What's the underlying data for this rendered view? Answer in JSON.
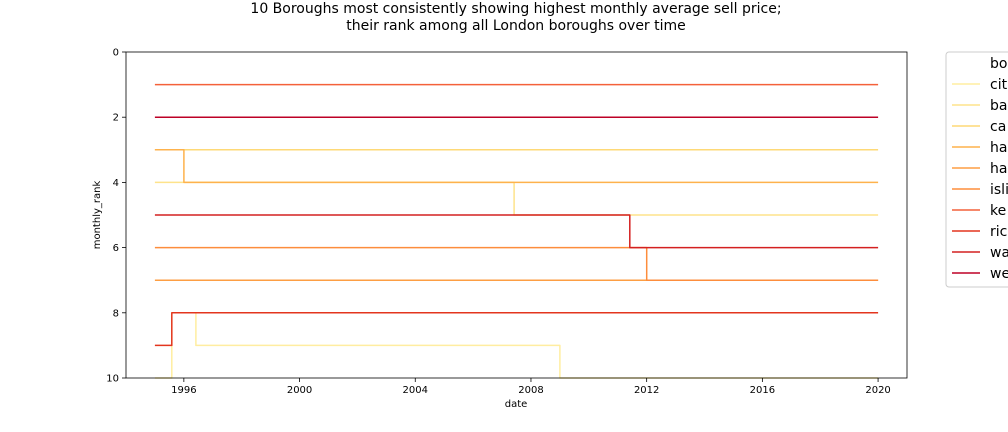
{
  "chart_data": {
    "type": "line",
    "title": "10 Boroughs most consistently showing highest monthly average sell price;",
    "subtitle": "their rank among all London boroughs over time",
    "xlabel": "date",
    "ylabel": "monthly_rank",
    "xlim": [
      "1994-01-01",
      "2021-01-01"
    ],
    "ylim": [
      10,
      0
    ],
    "y_inverted": true,
    "x_ticks": [
      "1996",
      "2000",
      "2004",
      "2008",
      "2012",
      "2016",
      "2020"
    ],
    "y_ticks": [
      "0",
      "2",
      "4",
      "6",
      "8",
      "10"
    ],
    "grid": false,
    "legend_placement": "outside-right",
    "legend_title": "bo",
    "series": [
      {
        "name": "cit",
        "color": "#ffeda0",
        "segments": [
          {
            "from": "1995-01",
            "to": "1995-08",
            "value": 10
          },
          {
            "from": "1995-08",
            "to": "1996-06",
            "value": 8
          },
          {
            "from": "1996-06",
            "to": "2009-01",
            "value": 9
          },
          {
            "from": "2009-01",
            "to": "2020-01",
            "value": 10
          }
        ]
      },
      {
        "name": "ba",
        "color": "#fee38b",
        "segments": [
          {
            "from": "1995-01",
            "to": "2007-06",
            "value": 4
          },
          {
            "from": "2007-06",
            "to": "2020-01",
            "value": 5
          }
        ]
      },
      {
        "name": "ca",
        "color": "#fed976",
        "segments": [
          {
            "from": "1995-01",
            "to": "2020-01",
            "value": 3
          }
        ]
      },
      {
        "name": "ha",
        "color": "#feb24c",
        "segments": [
          {
            "from": "1995-01",
            "to": "1996-01",
            "value": 3
          },
          {
            "from": "1996-01",
            "to": "2020-01",
            "value": 4
          }
        ]
      },
      {
        "name": "ha",
        "color": "#fd9e43",
        "segments": [
          {
            "from": "1995-01",
            "to": "2020-01",
            "value": 7
          }
        ]
      },
      {
        "name": "isli",
        "color": "#fd8d3c",
        "segments": [
          {
            "from": "1995-01",
            "to": "2012-01",
            "value": 6
          },
          {
            "from": "2012-01",
            "to": "2020-01",
            "value": 7
          }
        ]
      },
      {
        "name": "ke",
        "color": "#f4613a",
        "segments": [
          {
            "from": "1995-01",
            "to": "2020-01",
            "value": 1
          }
        ]
      },
      {
        "name": "ric",
        "color": "#e3351e",
        "segments": [
          {
            "from": "1995-01",
            "to": "1995-08",
            "value": 9
          },
          {
            "from": "1995-08",
            "to": "2020-01",
            "value": 8
          }
        ]
      },
      {
        "name": "wa",
        "color": "#d42020",
        "segments": [
          {
            "from": "1995-01",
            "to": "2011-06",
            "value": 5
          },
          {
            "from": "2011-06",
            "to": "2020-01",
            "value": 6
          }
        ]
      },
      {
        "name": "we",
        "color": "#bd0026",
        "segments": [
          {
            "from": "1995-01",
            "to": "2020-01",
            "value": 2
          }
        ]
      }
    ]
  }
}
